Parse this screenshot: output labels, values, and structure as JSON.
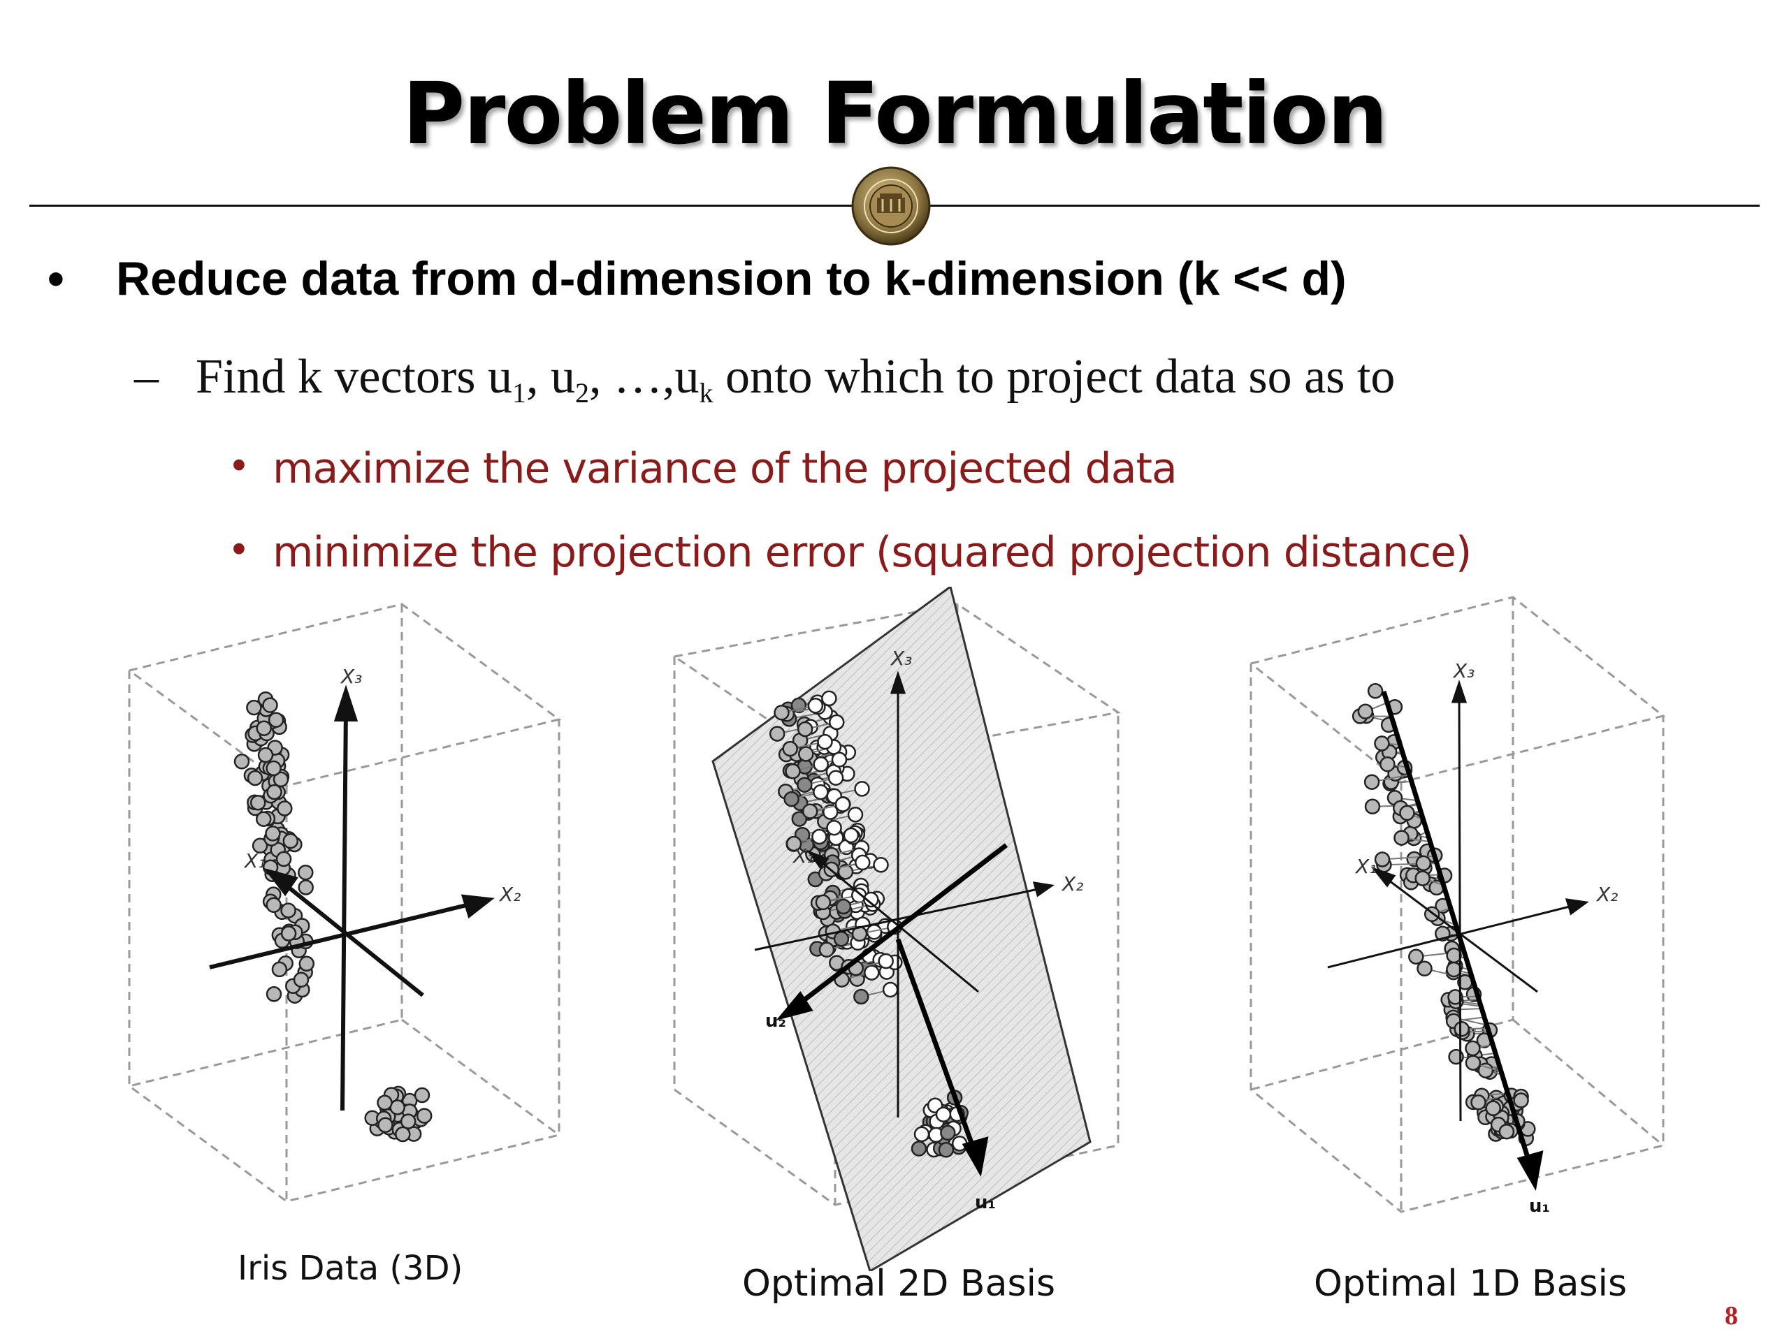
{
  "slide": {
    "title": "Problem Formulation",
    "page_number": "8",
    "bullet_main": "Reduce data from d-dimension to k-dimension (k << d)",
    "bullet_sub": {
      "prefix": "Find k vectors u",
      "s1": "1",
      "p2": ", u",
      "s2": "2",
      "p3": ", …,u",
      "sk": "k",
      "suffix": " onto which to project data so as to"
    },
    "sub_bullets": [
      "maximize the variance of  the projected data",
      "minimize the projection error  (squared projection distance)"
    ],
    "marks": {
      "bullet": "•",
      "dash": "–"
    }
  },
  "figures": [
    {
      "caption": "Iris Data (3D)",
      "axis_labels": [
        "X₁",
        "X₂",
        "X₃"
      ]
    },
    {
      "caption": "Optimal 2D Basis",
      "axis_labels": [
        "X₁",
        "X₂",
        "X₃"
      ],
      "basis_labels": [
        "u₁",
        "u₂"
      ]
    },
    {
      "caption": "Optimal 1D Basis",
      "axis_labels": [
        "X₁",
        "X₂",
        "X₃"
      ],
      "basis_labels": [
        "u₁"
      ]
    }
  ],
  "colors": {
    "title": "#000000",
    "sub_bullet": "#8b1a1a",
    "page_number": "#b22222",
    "seal": "#8a7440"
  }
}
